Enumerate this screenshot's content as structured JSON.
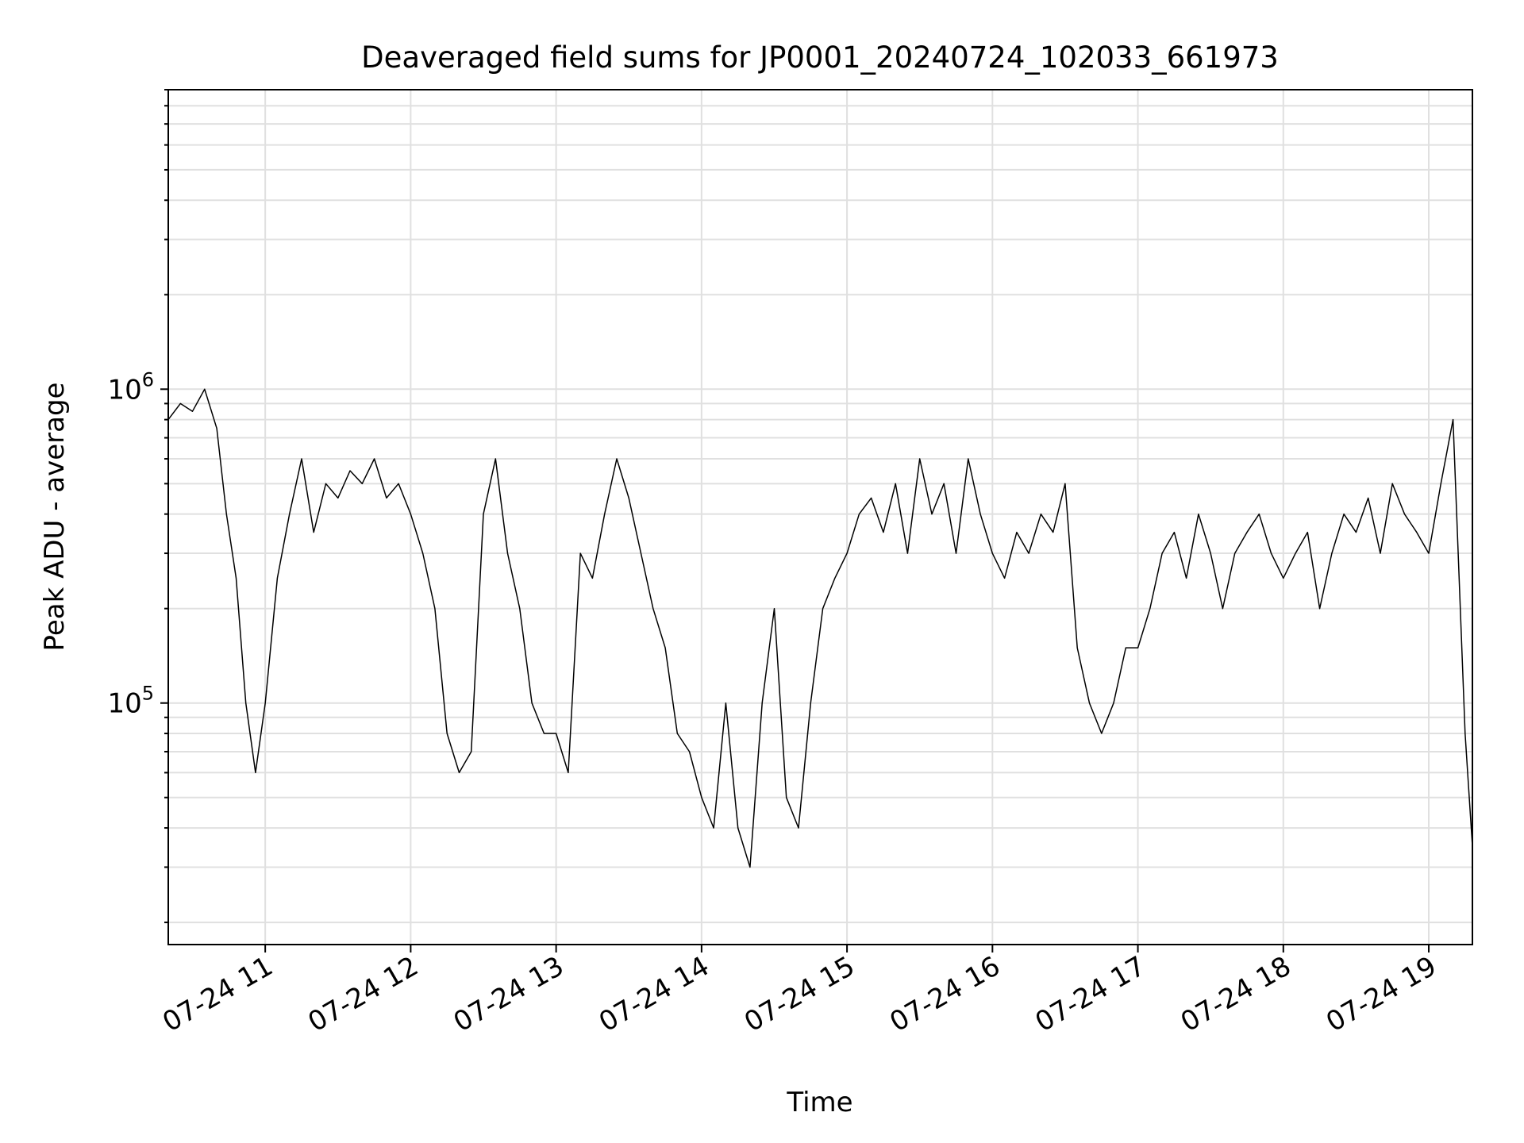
{
  "chart_data": {
    "type": "line",
    "title": "Deaveraged field sums for JP0001_20240724_102033_661973",
    "xlabel": "Time",
    "ylabel": "Peak ADU - average",
    "yscale": "log",
    "xlim": [
      "2024-07-24 10:20",
      "2024-07-24 19:18"
    ],
    "ylim": [
      17000,
      9000000
    ],
    "x_ticks": [
      {
        "label": "07-24 11",
        "x": "2024-07-24 11:00"
      },
      {
        "label": "07-24 12",
        "x": "2024-07-24 12:00"
      },
      {
        "label": "07-24 13",
        "x": "2024-07-24 13:00"
      },
      {
        "label": "07-24 14",
        "x": "2024-07-24 14:00"
      },
      {
        "label": "07-24 15",
        "x": "2024-07-24 15:00"
      },
      {
        "label": "07-24 16",
        "x": "2024-07-24 16:00"
      },
      {
        "label": "07-24 17",
        "x": "2024-07-24 17:00"
      },
      {
        "label": "07-24 18",
        "x": "2024-07-24 18:00"
      },
      {
        "label": "07-24 19",
        "x": "2024-07-24 19:00"
      }
    ],
    "y_ticks": [
      {
        "base": "10",
        "exp": "5",
        "value": 100000
      },
      {
        "base": "10",
        "exp": "6",
        "value": 1000000
      }
    ],
    "grid": true,
    "line_color": "#000000",
    "grid_color": "#e0e0e0",
    "series": [
      {
        "x": [
          "2024-07-24 10:20",
          "2024-07-24 10:25",
          "2024-07-24 10:30",
          "2024-07-24 10:35",
          "2024-07-24 10:40",
          "2024-07-24 10:44",
          "2024-07-24 10:48",
          "2024-07-24 10:52",
          "2024-07-24 10:56",
          "2024-07-24 11:00",
          "2024-07-24 11:05",
          "2024-07-24 11:10",
          "2024-07-24 11:15",
          "2024-07-24 11:20",
          "2024-07-24 11:25",
          "2024-07-24 11:30",
          "2024-07-24 11:35",
          "2024-07-24 11:40",
          "2024-07-24 11:45",
          "2024-07-24 11:50",
          "2024-07-24 11:55",
          "2024-07-24 12:00",
          "2024-07-24 12:05",
          "2024-07-24 12:10",
          "2024-07-24 12:15",
          "2024-07-24 12:20",
          "2024-07-24 12:25",
          "2024-07-24 12:30",
          "2024-07-24 12:35",
          "2024-07-24 12:40",
          "2024-07-24 12:45",
          "2024-07-24 12:50",
          "2024-07-24 12:55",
          "2024-07-24 13:00",
          "2024-07-24 13:05",
          "2024-07-24 13:10",
          "2024-07-24 13:15",
          "2024-07-24 13:20",
          "2024-07-24 13:25",
          "2024-07-24 13:30",
          "2024-07-24 13:35",
          "2024-07-24 13:40",
          "2024-07-24 13:45",
          "2024-07-24 13:50",
          "2024-07-24 13:55",
          "2024-07-24 14:00",
          "2024-07-24 14:05",
          "2024-07-24 14:10",
          "2024-07-24 14:15",
          "2024-07-24 14:20",
          "2024-07-24 14:25",
          "2024-07-24 14:30",
          "2024-07-24 14:35",
          "2024-07-24 14:40",
          "2024-07-24 14:45",
          "2024-07-24 14:50",
          "2024-07-24 14:55",
          "2024-07-24 15:00",
          "2024-07-24 15:05",
          "2024-07-24 15:10",
          "2024-07-24 15:15",
          "2024-07-24 15:20",
          "2024-07-24 15:25",
          "2024-07-24 15:30",
          "2024-07-24 15:35",
          "2024-07-24 15:40",
          "2024-07-24 15:45",
          "2024-07-24 15:50",
          "2024-07-24 15:55",
          "2024-07-24 16:00",
          "2024-07-24 16:05",
          "2024-07-24 16:10",
          "2024-07-24 16:15",
          "2024-07-24 16:20",
          "2024-07-24 16:25",
          "2024-07-24 16:30",
          "2024-07-24 16:35",
          "2024-07-24 16:40",
          "2024-07-24 16:45",
          "2024-07-24 16:50",
          "2024-07-24 16:55",
          "2024-07-24 17:00",
          "2024-07-24 17:05",
          "2024-07-24 17:10",
          "2024-07-24 17:15",
          "2024-07-24 17:20",
          "2024-07-24 17:25",
          "2024-07-24 17:30",
          "2024-07-24 17:35",
          "2024-07-24 17:40",
          "2024-07-24 17:45",
          "2024-07-24 17:50",
          "2024-07-24 17:55",
          "2024-07-24 18:00",
          "2024-07-24 18:05",
          "2024-07-24 18:10",
          "2024-07-24 18:15",
          "2024-07-24 18:20",
          "2024-07-24 18:25",
          "2024-07-24 18:30",
          "2024-07-24 18:35",
          "2024-07-24 18:40",
          "2024-07-24 18:45",
          "2024-07-24 18:50",
          "2024-07-24 18:55",
          "2024-07-24 19:00",
          "2024-07-24 19:05",
          "2024-07-24 19:10",
          "2024-07-24 19:15",
          "2024-07-24 19:18"
        ],
        "values": [
          800000,
          900000,
          850000,
          1000000,
          750000,
          400000,
          250000,
          100000,
          60000,
          100000,
          250000,
          400000,
          600000,
          350000,
          500000,
          450000,
          550000,
          500000,
          600000,
          450000,
          500000,
          400000,
          300000,
          200000,
          80000,
          60000,
          70000,
          400000,
          600000,
          300000,
          200000,
          100000,
          80000,
          80000,
          60000,
          300000,
          250000,
          400000,
          600000,
          450000,
          300000,
          200000,
          150000,
          80000,
          70000,
          50000,
          40000,
          100000,
          40000,
          30000,
          100000,
          200000,
          50000,
          40000,
          100000,
          200000,
          250000,
          300000,
          400000,
          450000,
          350000,
          500000,
          300000,
          600000,
          400000,
          500000,
          300000,
          600000,
          400000,
          300000,
          250000,
          350000,
          300000,
          400000,
          350000,
          500000,
          150000,
          100000,
          80000,
          100000,
          150000,
          150000,
          200000,
          300000,
          350000,
          250000,
          400000,
          300000,
          200000,
          300000,
          350000,
          400000,
          300000,
          250000,
          300000,
          350000,
          200000,
          300000,
          400000,
          350000,
          450000,
          300000,
          500000,
          400000,
          350000,
          300000,
          500000,
          800000,
          80000,
          35000
        ]
      }
    ]
  }
}
